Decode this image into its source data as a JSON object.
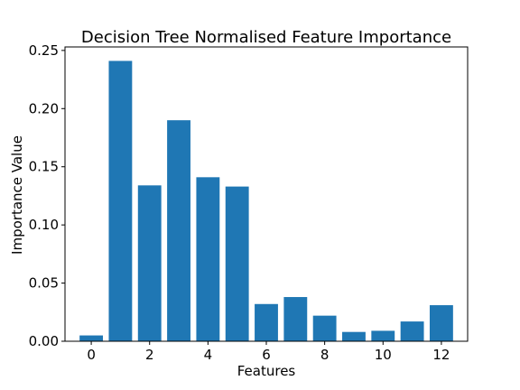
{
  "chart_data": {
    "type": "bar",
    "title": "Decision Tree Normalised Feature Importance",
    "xlabel": "Features",
    "ylabel": "Importance Value",
    "categories": [
      0,
      1,
      2,
      3,
      4,
      5,
      6,
      7,
      8,
      9,
      10,
      11,
      12
    ],
    "values": [
      0.005,
      0.241,
      0.134,
      0.19,
      0.141,
      0.133,
      0.032,
      0.038,
      0.022,
      0.008,
      0.009,
      0.017,
      0.031
    ],
    "xlim": [
      -0.9,
      12.9
    ],
    "ylim": [
      0,
      0.253
    ],
    "x_ticks": [
      0,
      2,
      4,
      6,
      8,
      10,
      12
    ],
    "y_ticks": [
      0.0,
      0.05,
      0.1,
      0.15,
      0.2,
      0.25
    ],
    "x_tick_labels": [
      "0",
      "2",
      "4",
      "6",
      "8",
      "10",
      "12"
    ],
    "y_tick_labels": [
      "0.00",
      "0.05",
      "0.10",
      "0.15",
      "0.20",
      "0.25"
    ],
    "bar_color": "#1f77b4",
    "grid": false,
    "legend": false
  }
}
